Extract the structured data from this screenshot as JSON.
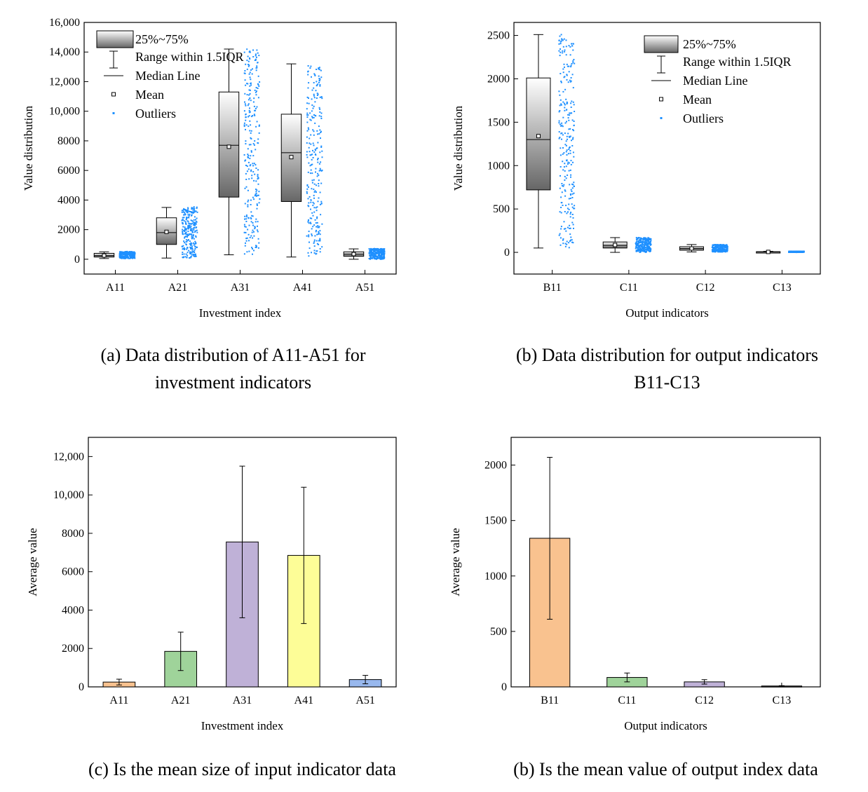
{
  "colors": {
    "outlier": "#1e90ff",
    "box_top": "#ffffff",
    "box_bottom": "#666666",
    "bar_fills": [
      "#f9c28f",
      "#9fd39a",
      "#bfb1d7",
      "#fdfd97",
      "#98b8ee"
    ],
    "bar_fills_out": [
      "#f9c28f",
      "#9fd39a",
      "#bfb1d7",
      "#333333"
    ]
  },
  "legend": {
    "box": "25%~75%",
    "range": "Range within 1.5IQR",
    "median": "Median Line",
    "mean": "Mean",
    "outliers": "Outliers"
  },
  "chart_data": [
    {
      "id": "a",
      "type": "box",
      "caption": [
        "(a) Data distribution of A11-A51 for",
        "investment indicators"
      ],
      "xlabel": "Investment index",
      "ylabel": "Value distribution",
      "ylim": [
        -1000,
        16000
      ],
      "yticks": [
        0,
        2000,
        4000,
        6000,
        8000,
        10000,
        12000,
        14000,
        16000
      ],
      "ytick_labels": [
        "0",
        "2000",
        "4000",
        "6000",
        "8000",
        "10,000",
        "12,000",
        "14,000",
        "16,000"
      ],
      "categories": [
        "A11",
        "A21",
        "A31",
        "A41",
        "A51"
      ],
      "series": [
        {
          "q1": 150,
          "median": 250,
          "q3": 400,
          "mean": 250,
          "wlow": 50,
          "whigh": 500,
          "pmin": 50,
          "pmax": 520
        },
        {
          "q1": 1000,
          "median": 1800,
          "q3": 2800,
          "mean": 1850,
          "wlow": 80,
          "whigh": 3500,
          "pmin": 80,
          "pmax": 3550
        },
        {
          "q1": 4200,
          "median": 7700,
          "q3": 11300,
          "mean": 7600,
          "wlow": 300,
          "whigh": 14200,
          "pmin": 300,
          "pmax": 14200
        },
        {
          "q1": 3900,
          "median": 7200,
          "q3": 9800,
          "mean": 6900,
          "wlow": 150,
          "whigh": 13200,
          "pmin": 200,
          "pmax": 13200
        },
        {
          "q1": 200,
          "median": 350,
          "q3": 500,
          "mean": 350,
          "wlow": 0,
          "whigh": 700,
          "pmin": 0,
          "pmax": 720
        }
      ]
    },
    {
      "id": "b",
      "type": "box",
      "caption": [
        "(b) Data distribution for output indicators",
        "B11-C13"
      ],
      "xlabel": "Output indicators",
      "ylabel": "Value distribution",
      "ylim": [
        -250,
        2650
      ],
      "yticks": [
        0,
        500,
        1000,
        1500,
        2000,
        2500
      ],
      "ytick_labels": [
        "0",
        "500",
        "1000",
        "1500",
        "2000",
        "2500"
      ],
      "categories": [
        "B11",
        "C11",
        "C12",
        "C13"
      ],
      "series": [
        {
          "q1": 720,
          "median": 1300,
          "q3": 2010,
          "mean": 1340,
          "wlow": 50,
          "whigh": 2510,
          "pmin": 50,
          "pmax": 2510
        },
        {
          "q1": 50,
          "median": 80,
          "q3": 120,
          "mean": 85,
          "wlow": 0,
          "whigh": 170,
          "pmin": 0,
          "pmax": 170
        },
        {
          "q1": 25,
          "median": 45,
          "q3": 65,
          "mean": 45,
          "wlow": 5,
          "whigh": 90,
          "pmin": 5,
          "pmax": 90
        },
        {
          "q1": 2,
          "median": 5,
          "q3": 8,
          "mean": 5,
          "wlow": 0,
          "whigh": 12,
          "pmin": 0,
          "pmax": 12
        }
      ]
    },
    {
      "id": "c",
      "type": "bar",
      "caption": [
        "(c)  Is the mean size of input indicator data"
      ],
      "xlabel": "Investment index",
      "ylabel": "Average value",
      "ylim": [
        0,
        13000
      ],
      "yticks": [
        0,
        2000,
        4000,
        6000,
        8000,
        10000,
        12000
      ],
      "ytick_labels": [
        "0",
        "2000",
        "4000",
        "6000",
        "8000",
        "10,000",
        "12,000"
      ],
      "categories": [
        "A11",
        "A21",
        "A31",
        "A41",
        "A51"
      ],
      "values": [
        250,
        1850,
        7550,
        6850,
        380
      ],
      "errors": [
        150,
        1000,
        3950,
        3550,
        220
      ]
    },
    {
      "id": "d",
      "type": "bar",
      "caption": [
        "(b) Is the mean value of output index data"
      ],
      "xlabel": "Output indicators",
      "ylabel": "Average value",
      "ylim": [
        0,
        2250
      ],
      "yticks": [
        0,
        500,
        1000,
        1500,
        2000
      ],
      "ytick_labels": [
        "0",
        "500",
        "1000",
        "1500",
        "2000"
      ],
      "categories": [
        "B11",
        "C11",
        "C12",
        "C13"
      ],
      "values": [
        1340,
        85,
        45,
        8
      ],
      "errors": [
        730,
        40,
        20,
        3
      ]
    }
  ]
}
